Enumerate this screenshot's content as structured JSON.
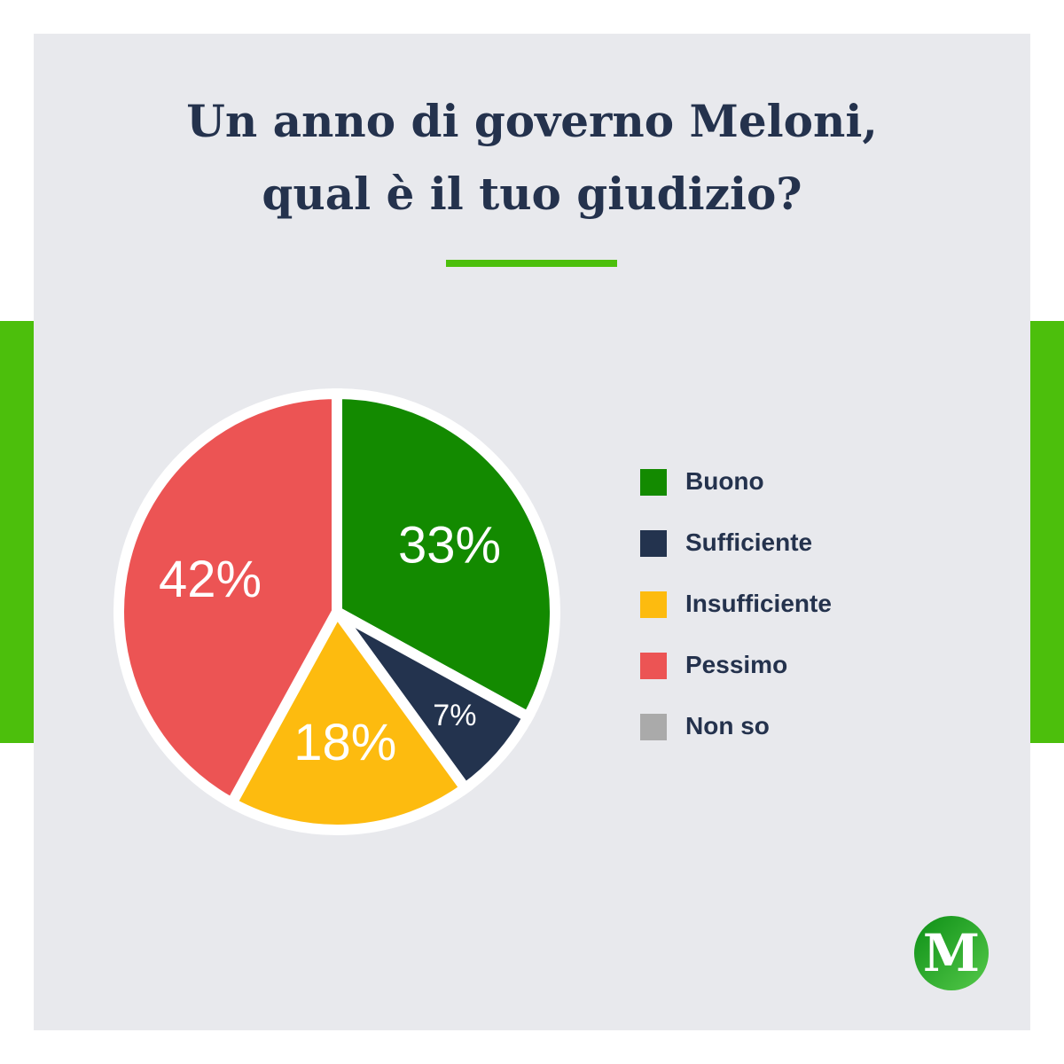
{
  "title": {
    "line1": "Un anno di governo Meloni,",
    "line2": "qual è il tuo giudizio?"
  },
  "chart_data": {
    "type": "pie",
    "title": "Un anno di governo Meloni, qual è il tuo giudizio?",
    "categories": [
      "Buono",
      "Sufficiente",
      "Insufficiente",
      "Pessimo",
      "Non so"
    ],
    "values": [
      33,
      7,
      18,
      42,
      0
    ],
    "value_labels": [
      "33%",
      "7%",
      "18%",
      "42%",
      ""
    ],
    "colors": [
      "#138a00",
      "#23334e",
      "#fdbb0f",
      "#ec5454",
      "#aaaaaa"
    ],
    "legend_position": "right"
  },
  "logo": {
    "letter": "M",
    "icon": "m-logo-icon",
    "colors": {
      "dark": "#0d8f16",
      "light": "#55c94a",
      "letter": "#ffffff"
    }
  },
  "theme": {
    "background": "#e8e9ed",
    "accent": "#4cbf0c",
    "text": "#24324d"
  }
}
